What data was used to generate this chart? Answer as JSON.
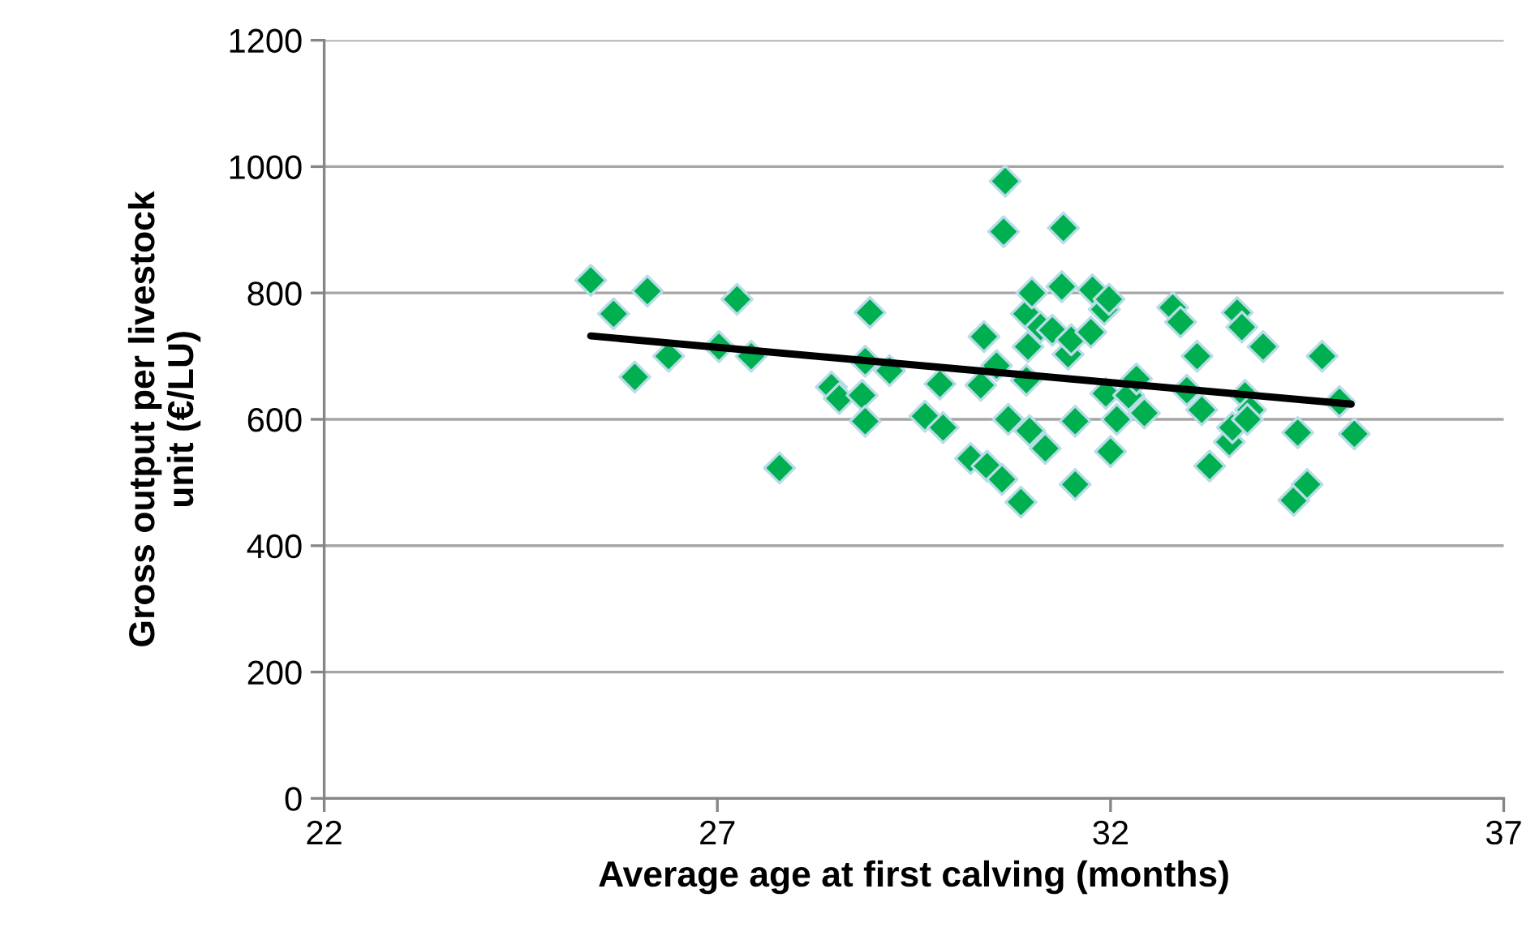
{
  "chart_data": {
    "type": "scatter",
    "xlabel": "Average age at first calving (months)",
    "ylabel": "Gross output per livestock\nunit (€/LU)",
    "xlim": [
      22,
      37
    ],
    "xticks": [
      22,
      27,
      32,
      37
    ],
    "ylim": [
      0,
      1200
    ],
    "yticks": [
      0,
      200,
      400,
      600,
      800,
      1000,
      1200
    ],
    "grid": "y",
    "marker": "diamond",
    "series": [
      {
        "color": "#00b050",
        "x": [
          25.39,
          25.68,
          25.95,
          26.11,
          26.38,
          27.02,
          27.25,
          27.43,
          27.79,
          28.45,
          28.55,
          28.84,
          28.88,
          28.94,
          28.88,
          29.19,
          29.64,
          29.83,
          29.87,
          30.22,
          30.39,
          30.35,
          30.43,
          30.55,
          30.62,
          30.66,
          30.64,
          30.7,
          30.86,
          30.93,
          31.0,
          30.93,
          30.95,
          30.97,
          31.11,
          31.17,
          31.26,
          31.4,
          31.38,
          31.46,
          31.5,
          31.55,
          31.55,
          31.75,
          31.77,
          31.92,
          31.98,
          31.94,
          32.0,
          32.08,
          32.23,
          32.33,
          32.43,
          32.79,
          32.89,
          32.97,
          33.1,
          33.16,
          33.26,
          33.51,
          33.55,
          33.61,
          33.67,
          33.71,
          33.78,
          33.74,
          33.94,
          34.33,
          34.38,
          34.5,
          34.69,
          34.91,
          35.1
        ],
        "values": [
          820,
          767,
          667,
          803,
          700,
          715,
          790,
          700,
          523,
          651,
          633,
          638,
          597,
          769,
          692,
          677,
          605,
          656,
          587,
          538,
          731,
          654,
          526,
          685,
          505,
          977,
          897,
          600,
          469,
          767,
          800,
          662,
          715,
          582,
          746,
          554,
          741,
          903,
          810,
          703,
          726,
          497,
          597,
          738,
          805,
          774,
          790,
          641,
          549,
          600,
          638,
          664,
          610,
          777,
          754,
          646,
          700,
          615,
          526,
          564,
          587,
          769,
          746,
          638,
          615,
          600,
          715,
          472,
          579,
          497,
          700,
          628,
          577
        ]
      },
      {
        "type": "line",
        "color": "#000000",
        "marker": "none",
        "x": [
          25.39,
          35.06
        ],
        "values": [
          732,
          624
        ]
      }
    ]
  }
}
